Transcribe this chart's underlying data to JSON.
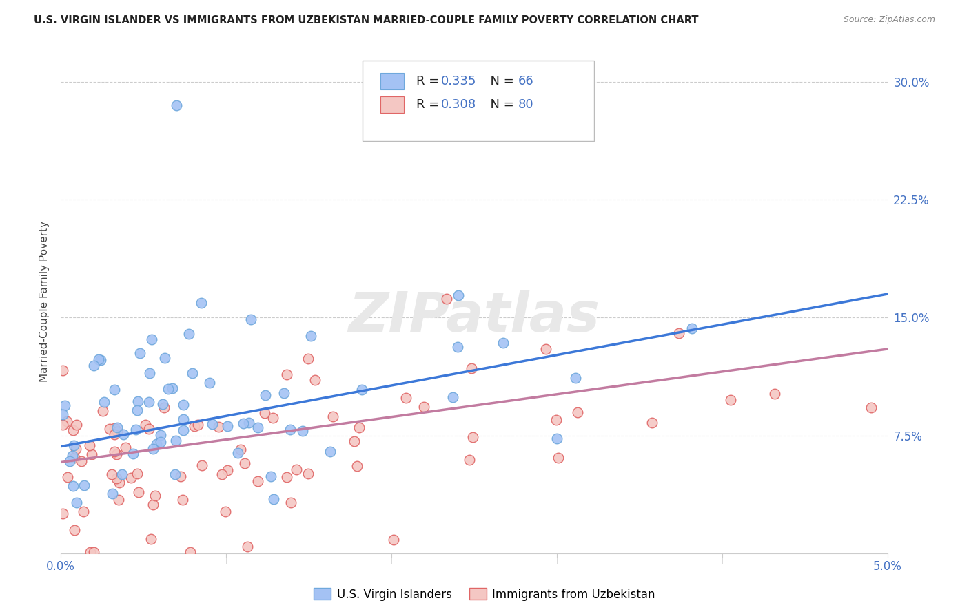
{
  "title": "U.S. VIRGIN ISLANDER VS IMMIGRANTS FROM UZBEKISTAN MARRIED-COUPLE FAMILY POVERTY CORRELATION CHART",
  "source": "Source: ZipAtlas.com",
  "watermark": "ZIPatlas",
  "ylabel": "Married-Couple Family Poverty",
  "xlim": [
    0.0,
    0.05
  ],
  "ylim": [
    0.0,
    0.32
  ],
  "ytick_values": [
    0.0,
    0.075,
    0.15,
    0.225,
    0.3
  ],
  "xtick_values": [
    0.0,
    0.01,
    0.02,
    0.03,
    0.04,
    0.05
  ],
  "series1": {
    "label": "U.S. Virgin Islanders",
    "R": "0.335",
    "N": "66",
    "scatter_face": "#a4c2f4",
    "scatter_edge": "#6fa8dc",
    "line_color": "#3c78d8"
  },
  "series2": {
    "label": "Immigrants from Uzbekistan",
    "R": "0.308",
    "N": "80",
    "scatter_face": "#f4c7c3",
    "scatter_edge": "#e06666",
    "line_color": "#c27ba0"
  },
  "line1_x": [
    0.0,
    0.05
  ],
  "line1_y": [
    0.068,
    0.165
  ],
  "line2_x": [
    0.0,
    0.05
  ],
  "line2_y": [
    0.058,
    0.13
  ],
  "background_color": "#ffffff",
  "grid_color": "#cccccc",
  "title_color": "#222222",
  "source_color": "#888888",
  "watermark_color": "#e8e8e8",
  "axis_tick_color": "#4472c4",
  "legend_text_black": "#222222",
  "legend_value_color": "#4472c4"
}
